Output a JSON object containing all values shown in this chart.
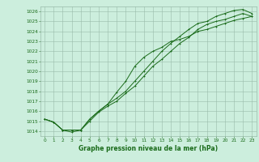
{
  "title": "Graphe pression niveau de la mer (hPa)",
  "bg_color": "#cceedd",
  "grid_color": "#99bbaa",
  "line_color": "#1a6b1a",
  "xlim": [
    -0.5,
    23.5
  ],
  "ylim": [
    1013.5,
    1026.5
  ],
  "xticks": [
    0,
    1,
    2,
    3,
    4,
    5,
    6,
    7,
    8,
    9,
    10,
    11,
    12,
    13,
    14,
    15,
    16,
    17,
    18,
    19,
    20,
    21,
    22,
    23
  ],
  "yticks": [
    1014,
    1015,
    1016,
    1017,
    1018,
    1019,
    1020,
    1021,
    1022,
    1023,
    1024,
    1025,
    1026
  ],
  "series1_x": [
    0,
    1,
    2,
    3,
    4,
    5,
    6,
    7,
    8,
    9,
    10,
    11,
    12,
    13,
    14,
    15,
    16,
    17,
    18,
    19,
    20,
    21,
    22,
    23
  ],
  "series1_y": [
    1015.2,
    1014.9,
    1014.1,
    1013.9,
    1014.1,
    1015.0,
    1015.9,
    1016.5,
    1017.0,
    1017.8,
    1018.5,
    1019.5,
    1020.5,
    1021.2,
    1022.0,
    1022.8,
    1023.4,
    1024.2,
    1024.7,
    1025.0,
    1025.2,
    1025.5,
    1025.8,
    1025.5
  ],
  "series2_x": [
    0,
    1,
    2,
    3,
    4,
    5,
    6,
    7,
    8,
    9,
    10,
    11,
    12,
    13,
    14,
    15,
    16,
    17,
    18,
    19,
    20,
    21,
    22,
    23
  ],
  "series2_y": [
    1015.2,
    1014.9,
    1014.1,
    1014.1,
    1014.1,
    1015.2,
    1016.0,
    1016.7,
    1017.3,
    1018.0,
    1019.0,
    1020.0,
    1021.0,
    1022.0,
    1022.8,
    1023.5,
    1024.2,
    1024.8,
    1025.0,
    1025.5,
    1025.8,
    1026.1,
    1026.2,
    1025.8
  ],
  "series3_x": [
    0,
    1,
    2,
    3,
    4,
    5,
    6,
    7,
    8,
    9,
    10,
    11,
    12,
    13,
    14,
    15,
    16,
    17,
    18,
    19,
    20,
    21,
    22,
    23
  ],
  "series3_y": [
    1015.2,
    1014.9,
    1014.1,
    1014.1,
    1014.1,
    1015.2,
    1016.0,
    1016.7,
    1017.9,
    1019.0,
    1020.5,
    1021.4,
    1022.0,
    1022.4,
    1023.0,
    1023.2,
    1023.5,
    1024.0,
    1024.2,
    1024.5,
    1024.8,
    1025.1,
    1025.3,
    1025.5
  ],
  "tick_fontsize": 4.2,
  "xlabel_fontsize": 5.5
}
